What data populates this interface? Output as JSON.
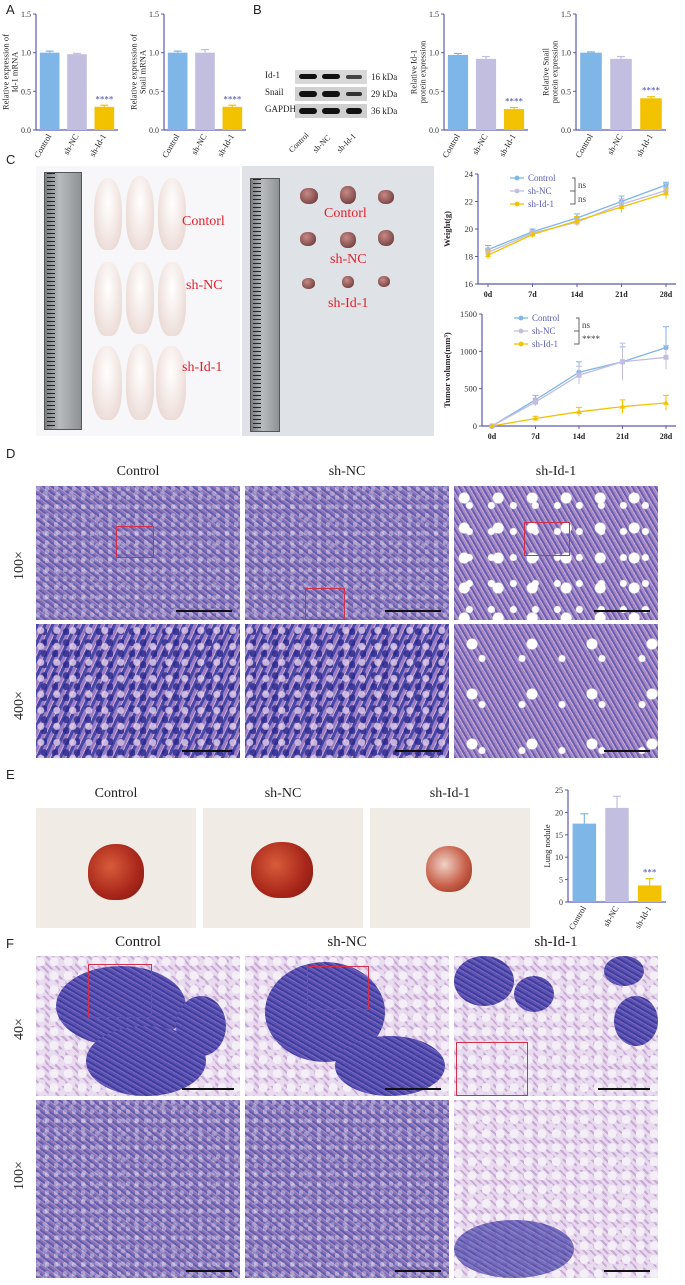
{
  "panels": {
    "A": "A",
    "B": "B",
    "C": "C",
    "D": "D",
    "E": "E",
    "F": "F"
  },
  "colors": {
    "control": "#7fb6e8",
    "shNC": "#c2bee0",
    "shId1": "#f2c200",
    "axis": "#5a5ab0",
    "sig": "#4a4ab0"
  },
  "panelA": [
    {
      "ylabel": "Relative expression of Id-1 mRNA",
      "categories": [
        "Control",
        "sh-NC",
        "sh-Id-1"
      ],
      "values": [
        1.0,
        0.98,
        0.3
      ],
      "errors": [
        0.02,
        0.01,
        0.02
      ],
      "ylim": [
        0,
        1.5
      ],
      "yticks": [
        "0.0",
        "0.5",
        "1.0",
        "1.5"
      ],
      "sig": "****"
    },
    {
      "ylabel": "Relative expression of Snail mRNA",
      "categories": [
        "Control",
        "sh-NC",
        "sh-Id-1"
      ],
      "values": [
        1.0,
        1.0,
        0.3
      ],
      "errors": [
        0.02,
        0.04,
        0.02
      ],
      "ylim": [
        0,
        1.5
      ],
      "yticks": [
        "0.0",
        "0.5",
        "1.0",
        "1.5"
      ],
      "sig": "****"
    }
  ],
  "panelB_blot": {
    "rows": [
      {
        "name": "Id-1",
        "kda": "16 kDa"
      },
      {
        "name": "Snail",
        "kda": "29 kDa"
      },
      {
        "name": "GAPDH",
        "kda": "36 kDa"
      }
    ],
    "lanes": [
      "Control",
      "sh-NC",
      "sh-Id-1"
    ]
  },
  "panelB": [
    {
      "ylabel": "Relative Id-1 protein expression",
      "categories": [
        "Control",
        "sh-NC",
        "sh-Id-1"
      ],
      "values": [
        0.97,
        0.92,
        0.27
      ],
      "errors": [
        0.02,
        0.03,
        0.02
      ],
      "ylim": [
        0,
        1.5
      ],
      "yticks": [
        "0.0",
        "0.5",
        "1.0",
        "1.5"
      ],
      "sig": "****"
    },
    {
      "ylabel": "Relative Snail protein expression",
      "categories": [
        "Control",
        "sh-NC",
        "sh-Id-1"
      ],
      "values": [
        1.0,
        0.92,
        0.41
      ],
      "errors": [
        0.01,
        0.03,
        0.02
      ],
      "ylim": [
        0,
        1.5
      ],
      "yticks": [
        "0.0",
        "0.5",
        "1.0",
        "1.5"
      ],
      "sig": "****"
    }
  ],
  "panelC_photos": {
    "labels1": [
      "Contorl",
      "sh-NC",
      "sh-Id-1"
    ],
    "labels2": [
      "Contorl",
      "sh-NC",
      "sh-Id-1"
    ]
  },
  "chart_data": [
    {
      "type": "line",
      "ylabel": "Weight(g)",
      "x": [
        "0d",
        "7d",
        "14d",
        "21d",
        "28d"
      ],
      "ylim": [
        16,
        24
      ],
      "yticks": [
        "16",
        "18",
        "20",
        "22",
        "24"
      ],
      "series": [
        {
          "name": "Control",
          "values": [
            18.5,
            19.8,
            20.8,
            22.0,
            23.2
          ],
          "errors": [
            0.3,
            0.2,
            0.3,
            0.4,
            0.2
          ]
        },
        {
          "name": "sh-NC",
          "values": [
            18.3,
            19.7,
            20.5,
            21.8,
            22.8
          ],
          "errors": [
            0.3,
            0.2,
            0.3,
            0.4,
            0.5
          ]
        },
        {
          "name": "sh-Id-1",
          "values": [
            18.1,
            19.6,
            20.6,
            21.6,
            22.6
          ],
          "errors": [
            0.3,
            0.2,
            0.3,
            0.4,
            0.4
          ]
        }
      ],
      "annotations": [
        "ns",
        "ns"
      ]
    },
    {
      "type": "line",
      "ylabel": "Tumor volume(mm³)",
      "x": [
        "0d",
        "7d",
        "14d",
        "21d",
        "28d"
      ],
      "ylim": [
        0,
        1500
      ],
      "yticks": [
        "0",
        "500",
        "1000",
        "1500"
      ],
      "series": [
        {
          "name": "Control",
          "values": [
            0,
            350,
            720,
            860,
            1050
          ],
          "errors": [
            0,
            60,
            140,
            200,
            280
          ]
        },
        {
          "name": "sh-NC",
          "values": [
            0,
            320,
            680,
            860,
            920
          ],
          "errors": [
            0,
            50,
            120,
            250,
            160
          ]
        },
        {
          "name": "sh-Id-1",
          "values": [
            0,
            100,
            190,
            260,
            310
          ],
          "errors": [
            0,
            30,
            60,
            90,
            100
          ]
        }
      ],
      "annotations": [
        "ns",
        "****"
      ]
    },
    {
      "type": "bar",
      "ylabel": "Lung nodule",
      "categories": [
        "Control",
        "sh-NC",
        "sh-Id-1"
      ],
      "values": [
        17.5,
        21.0,
        3.7
      ],
      "errors": [
        2.2,
        2.6,
        1.5
      ],
      "ylim": [
        0,
        25
      ],
      "yticks": [
        "0",
        "5",
        "10",
        "15",
        "20",
        "25"
      ],
      "sig": "***"
    }
  ],
  "panelD": {
    "cols": [
      "Control",
      "sh-NC",
      "sh-Id-1"
    ],
    "rows": [
      "100×",
      "400×"
    ]
  },
  "panelE": {
    "cols": [
      "Control",
      "sh-NC",
      "sh-Id-1"
    ]
  },
  "panelF": {
    "cols": [
      "Control",
      "sh-NC",
      "sh-Id-1"
    ],
    "rows": [
      "40×",
      "100×"
    ]
  }
}
